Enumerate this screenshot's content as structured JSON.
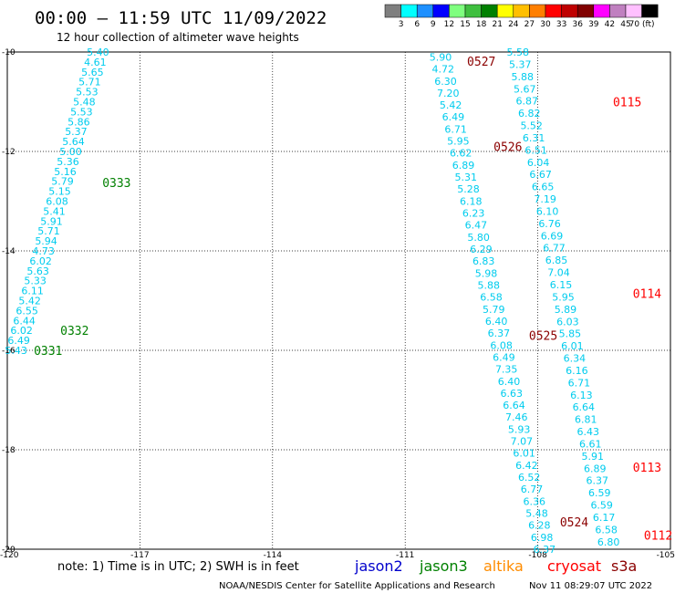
{
  "header": {
    "title": "00:00 – 11:59 UTC 11/09/2022",
    "subtitle": "12 hour collection of altimeter wave heights"
  },
  "colorbar": {
    "colors": [
      "#7f7f7f",
      "#00ffff",
      "#1e90ff",
      "#0000ff",
      "#7fff7f",
      "#3fbf3f",
      "#008000",
      "#ffff00",
      "#ffbf00",
      "#ff7f00",
      "#ff0000",
      "#bf0000",
      "#800000",
      "#ff00ff",
      "#c080c0",
      "#ffc0ff",
      "#000000"
    ],
    "labels": [
      "3",
      "6",
      "9",
      "12",
      "15",
      "18",
      "21",
      "24",
      "27",
      "30",
      "33",
      "36",
      "39",
      "42",
      "45",
      "70 (ft)"
    ]
  },
  "footer": {
    "note": "note:  1) Time is in UTC; 2) SWH is in feet",
    "satellites": [
      {
        "name": "jason2",
        "color": "#0000cc"
      },
      {
        "name": "jason3",
        "color": "#008000"
      },
      {
        "name": "altika",
        "color": "#ff8c00"
      },
      {
        "name": "cryosat",
        "color": "#ff0000"
      },
      {
        "name": "s3a",
        "color": "#8b0000"
      }
    ],
    "credit": "NOAA/NESDIS Center for Satellite Applications and Research",
    "timestamp": "Nov 11 08:29:07 UTC 2022"
  },
  "chart_data": {
    "type": "scatter",
    "title": "00:00 – 11:59 UTC 11/09/2022",
    "subtitle": "12 hour collection of altimeter wave heights",
    "xlim": [
      -120,
      -105
    ],
    "ylim": [
      -20,
      -10
    ],
    "x_ticks": [
      -120,
      -117,
      -114,
      -111,
      -108,
      -105
    ],
    "y_ticks": [
      -10,
      -12,
      -14,
      -16,
      -18,
      -20
    ],
    "x_tick_labels": [
      "-120",
      "-117",
      "-114",
      "-111",
      "-108",
      "-105"
    ],
    "y_tick_labels": [
      "-10",
      "-12",
      "-14",
      "-16",
      "-18",
      "-20"
    ],
    "grid": true,
    "value_color": "#00ccee",
    "tracks": [
      {
        "x0": -117.95,
        "y0": -10.0,
        "x1": -119.8,
        "y1": -16.0,
        "values": [
          "5.40",
          "4.61",
          "5.65",
          "5.71",
          "5.53",
          "5.48",
          "5.53",
          "5.86",
          "5.37",
          "5.64",
          "5.00",
          "5.36",
          "5.16",
          "5.79",
          "5.15",
          "6.08",
          "5.41",
          "5.91",
          "5.71",
          "5.94",
          "4.73",
          "6.02",
          "5.63",
          "5.33",
          "6.11",
          "5.42",
          "6.55",
          "6.44",
          "6.02",
          "6.49",
          "5.43"
        ]
      },
      {
        "x0": -110.2,
        "y0": -10.1,
        "x1": -107.85,
        "y1": -20.0,
        "values": [
          "5.90",
          "4.72",
          "6.30",
          "7.20",
          "5.42",
          "6.49",
          "6.71",
          "5.95",
          "6.62",
          "6.89",
          "5.31",
          "5.28",
          "6.18",
          "6.23",
          "6.47",
          "5.80",
          "6.29",
          "6.83",
          "5.98",
          "5.88",
          "6.58",
          "5.79",
          "6.40",
          "6.37",
          "6.08",
          "6.49",
          "7.35",
          "6.40",
          "6.63",
          "6.64",
          "7.46",
          "5.93",
          "7.07",
          "6.01",
          "6.42",
          "6.52",
          "6.77",
          "6.36",
          "5.48",
          "6.28",
          "6.98",
          "6.37"
        ]
      },
      {
        "x0": -108.45,
        "y0": -10.0,
        "x1": -106.4,
        "y1": -19.85,
        "values": [
          "5.58",
          "5.37",
          "5.88",
          "5.67",
          "6.87",
          "6.82",
          "5.52",
          "6.31",
          "6.51",
          "6.04",
          "6.67",
          "6.65",
          "7.19",
          "6.10",
          "6.76",
          "6.69",
          "6.77",
          "6.85",
          "7.04",
          "6.15",
          "5.95",
          "5.89",
          "6.03",
          "5.85",
          "6.01",
          "6.34",
          "6.16",
          "6.71",
          "6.13",
          "6.64",
          "6.81",
          "6.43",
          "6.61",
          "5.91",
          "6.89",
          "6.37",
          "6.59",
          "6.59",
          "6.17",
          "6.58",
          "6.80"
        ]
      }
    ],
    "pass_labels": [
      {
        "label": "0333",
        "x": -117.85,
        "y": -12.62,
        "sat": "jason3"
      },
      {
        "label": "0332",
        "x": -118.8,
        "y": -15.6,
        "sat": "jason3"
      },
      {
        "label": "0331",
        "x": -119.4,
        "y": -16.0,
        "sat": "jason3"
      },
      {
        "label": "0527",
        "x": -109.6,
        "y": -10.18,
        "sat": "s3a"
      },
      {
        "label": "0526",
        "x": -109.0,
        "y": -11.9,
        "sat": "s3a"
      },
      {
        "label": "0525",
        "x": -108.2,
        "y": -15.7,
        "sat": "s3a"
      },
      {
        "label": "0524",
        "x": -107.5,
        "y": -19.45,
        "sat": "s3a"
      },
      {
        "label": "0115",
        "x": -106.3,
        "y": -11.0,
        "sat": "cryosat"
      },
      {
        "label": "0114",
        "x": -105.85,
        "y": -14.85,
        "sat": "cryosat"
      },
      {
        "label": "0113",
        "x": -105.85,
        "y": -18.35,
        "sat": "cryosat"
      },
      {
        "label": "0112",
        "x": -105.6,
        "y": -19.72,
        "sat": "cryosat"
      }
    ]
  }
}
